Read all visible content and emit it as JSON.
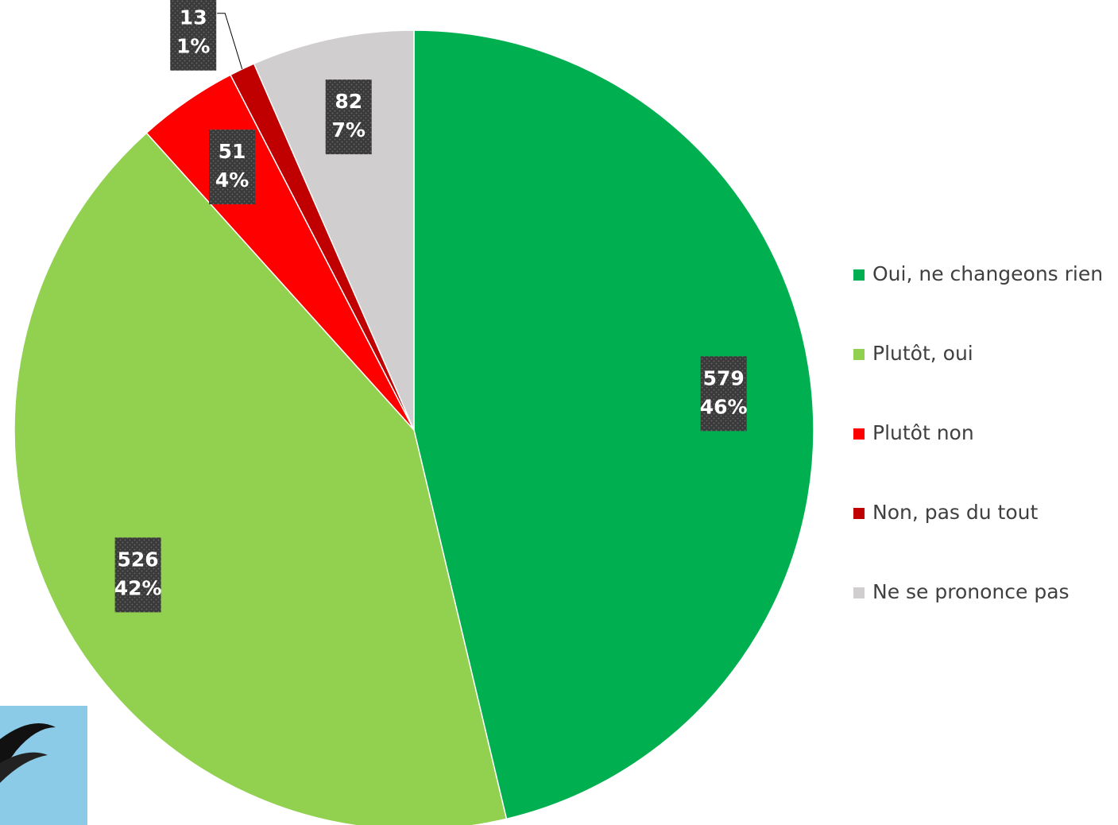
{
  "chart_data": {
    "type": "pie",
    "categories": [
      "Oui, ne changeons rien",
      "Plutôt, oui",
      "Plutôt non",
      "Non, pas du tout",
      "Ne se prononce pas"
    ],
    "values": [
      579,
      526,
      51,
      13,
      82
    ],
    "percent_labels": [
      "46%",
      "42%",
      "4%",
      "1%",
      "7%"
    ],
    "colors": [
      "#00b050",
      "#92d050",
      "#ff0000",
      "#c00000",
      "#d0cece"
    ],
    "legend": "right"
  }
}
